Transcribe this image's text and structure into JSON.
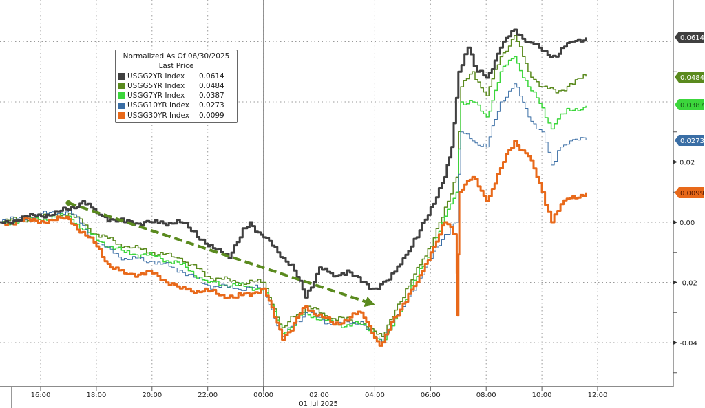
{
  "chart_data": {
    "type": "line",
    "title": "",
    "xlabel": "01 Jul 2025",
    "ylabel": "",
    "ylim": [
      -0.05,
      0.07
    ],
    "xlim": [
      "2025-06-30T14:32",
      "2025-07-01T14:45"
    ],
    "grid": true,
    "legend_placement": "top-left",
    "x_ticks": [
      "16:00",
      "18:00",
      "20:00",
      "22:00",
      "00:00",
      "02:00",
      "04:00",
      "06:00",
      "08:00",
      "10:00",
      "12:00"
    ],
    "x_tick_times": [
      "2025-06-30T16:00",
      "2025-06-30T18:00",
      "2025-06-30T20:00",
      "2025-06-30T22:00",
      "2025-07-01T00:00",
      "2025-07-01T02:00",
      "2025-07-01T04:00",
      "2025-07-01T06:00",
      "2025-07-01T08:00",
      "2025-07-01T10:00",
      "2025-07-01T12:00"
    ],
    "y_ticks": [
      "0.02",
      "0.00",
      "-0.02",
      "-0.04"
    ],
    "y_tick_values": [
      0.02,
      0.0,
      -0.02,
      -0.04
    ],
    "y_grid_values": [
      0.06,
      0.04,
      0.02,
      0.0,
      -0.02,
      -0.04
    ],
    "legend": {
      "title": "Normalized As Of 06/30/2025",
      "subtitle": "Last Price"
    },
    "series": [
      {
        "name": "USGG2YR Index",
        "last": "0.0614",
        "color": "#404040",
        "width": 3,
        "points": [
          [
            "2025-06-30T14:32",
            0.0
          ],
          [
            "2025-06-30T17:00",
            0.004
          ],
          [
            "2025-06-30T17:30",
            0.007
          ],
          [
            "2025-06-30T18:00",
            0.003
          ],
          [
            "2025-06-30T18:30",
            0.001
          ],
          [
            "2025-06-30T19:00",
            0.0
          ],
          [
            "2025-06-30T20:00",
            0.0
          ],
          [
            "2025-06-30T21:00",
            0.0
          ],
          [
            "2025-06-30T21:30",
            -0.003
          ],
          [
            "2025-06-30T22:00",
            -0.008
          ],
          [
            "2025-06-30T22:45",
            -0.012
          ],
          [
            "2025-06-30T23:15",
            -0.002
          ],
          [
            "2025-06-30T23:30",
            0.0
          ],
          [
            "2025-07-01T00:00",
            -0.005
          ],
          [
            "2025-07-01T00:30",
            -0.01
          ],
          [
            "2025-07-01T01:00",
            -0.014
          ],
          [
            "2025-07-01T01:30",
            -0.025
          ],
          [
            "2025-07-01T02:00",
            -0.015
          ],
          [
            "2025-07-01T02:30",
            -0.018
          ],
          [
            "2025-07-01T03:00",
            -0.016
          ],
          [
            "2025-07-01T03:30",
            -0.02
          ],
          [
            "2025-07-01T04:00",
            -0.022
          ],
          [
            "2025-07-01T04:30",
            -0.019
          ],
          [
            "2025-07-01T05:00",
            -0.012
          ],
          [
            "2025-07-01T05:30",
            -0.005
          ],
          [
            "2025-07-01T06:00",
            0.005
          ],
          [
            "2025-07-01T06:30",
            0.015
          ],
          [
            "2025-07-01T06:45",
            0.025
          ],
          [
            "2025-07-01T07:00",
            0.05
          ],
          [
            "2025-07-01T07:20",
            0.058
          ],
          [
            "2025-07-01T07:40",
            0.05
          ],
          [
            "2025-07-01T08:00",
            0.048
          ],
          [
            "2025-07-01T08:30",
            0.058
          ],
          [
            "2025-07-01T09:00",
            0.064
          ],
          [
            "2025-07-01T09:30",
            0.06
          ],
          [
            "2025-07-01T10:00",
            0.057
          ],
          [
            "2025-07-01T10:30",
            0.055
          ],
          [
            "2025-07-01T11:00",
            0.06
          ],
          [
            "2025-07-01T11:35",
            0.0614
          ]
        ]
      },
      {
        "name": "USGG5YR Index",
        "last": "0.0484",
        "color": "#5a8a1e",
        "width": 1.5,
        "points": [
          [
            "2025-06-30T14:32",
            0.0
          ],
          [
            "2025-06-30T17:00",
            0.003
          ],
          [
            "2025-06-30T18:00",
            -0.004
          ],
          [
            "2025-06-30T19:00",
            -0.008
          ],
          [
            "2025-06-30T20:00",
            -0.01
          ],
          [
            "2025-06-30T21:00",
            -0.012
          ],
          [
            "2025-06-30T22:00",
            -0.018
          ],
          [
            "2025-06-30T23:00",
            -0.02
          ],
          [
            "2025-07-01T00:00",
            -0.02
          ],
          [
            "2025-07-01T00:40",
            -0.035
          ],
          [
            "2025-07-01T01:30",
            -0.028
          ],
          [
            "2025-07-01T02:30",
            -0.032
          ],
          [
            "2025-07-01T03:30",
            -0.033
          ],
          [
            "2025-07-01T04:15",
            -0.038
          ],
          [
            "2025-07-01T05:00",
            -0.025
          ],
          [
            "2025-07-01T05:30",
            -0.015
          ],
          [
            "2025-07-01T06:00",
            -0.008
          ],
          [
            "2025-07-01T06:30",
            0.005
          ],
          [
            "2025-07-01T06:55",
            0.015
          ],
          [
            "2025-07-01T07:05",
            0.045
          ],
          [
            "2025-07-01T07:30",
            0.05
          ],
          [
            "2025-07-01T08:00",
            0.042
          ],
          [
            "2025-07-01T08:30",
            0.055
          ],
          [
            "2025-07-01T09:00",
            0.062
          ],
          [
            "2025-07-01T09:30",
            0.05
          ],
          [
            "2025-07-01T10:00",
            0.045
          ],
          [
            "2025-07-01T10:30",
            0.043
          ],
          [
            "2025-07-01T11:00",
            0.046
          ],
          [
            "2025-07-01T11:35",
            0.0484
          ]
        ]
      },
      {
        "name": "USGG7YR Index",
        "last": "0.0387",
        "color": "#3cd63c",
        "width": 1.5,
        "points": [
          [
            "2025-06-30T14:32",
            0.0
          ],
          [
            "2025-06-30T17:00",
            0.002
          ],
          [
            "2025-06-30T18:00",
            -0.006
          ],
          [
            "2025-06-30T19:00",
            -0.01
          ],
          [
            "2025-06-30T20:00",
            -0.011
          ],
          [
            "2025-06-30T21:00",
            -0.014
          ],
          [
            "2025-06-30T22:00",
            -0.02
          ],
          [
            "2025-06-30T23:00",
            -0.021
          ],
          [
            "2025-07-01T00:00",
            -0.022
          ],
          [
            "2025-07-01T00:40",
            -0.037
          ],
          [
            "2025-07-01T01:30",
            -0.03
          ],
          [
            "2025-07-01T02:30",
            -0.034
          ],
          [
            "2025-07-01T03:30",
            -0.034
          ],
          [
            "2025-07-01T04:15",
            -0.04
          ],
          [
            "2025-07-01T05:00",
            -0.027
          ],
          [
            "2025-07-01T05:30",
            -0.018
          ],
          [
            "2025-07-01T06:00",
            -0.01
          ],
          [
            "2025-07-01T06:30",
            0.002
          ],
          [
            "2025-07-01T06:55",
            0.01
          ],
          [
            "2025-07-01T07:05",
            0.04
          ],
          [
            "2025-07-01T07:30",
            0.04
          ],
          [
            "2025-07-01T08:00",
            0.035
          ],
          [
            "2025-07-01T08:30",
            0.05
          ],
          [
            "2025-07-01T09:00",
            0.055
          ],
          [
            "2025-07-01T09:30",
            0.045
          ],
          [
            "2025-07-01T10:00",
            0.038
          ],
          [
            "2025-07-01T10:20",
            0.031
          ],
          [
            "2025-07-01T10:40",
            0.036
          ],
          [
            "2025-07-01T11:00",
            0.037
          ],
          [
            "2025-07-01T11:35",
            0.0387
          ]
        ]
      },
      {
        "name": "USGG10YR Index",
        "last": "0.0273",
        "color": "#3a6ea5",
        "width": 1,
        "points": [
          [
            "2025-06-30T14:32",
            0.0
          ],
          [
            "2025-06-30T17:00",
            0.004
          ],
          [
            "2025-06-30T18:00",
            -0.007
          ],
          [
            "2025-06-30T19:00",
            -0.012
          ],
          [
            "2025-06-30T20:00",
            -0.013
          ],
          [
            "2025-06-30T21:00",
            -0.016
          ],
          [
            "2025-06-30T22:00",
            -0.021
          ],
          [
            "2025-06-30T23:00",
            -0.022
          ],
          [
            "2025-07-01T00:00",
            -0.022
          ],
          [
            "2025-07-01T00:40",
            -0.038
          ],
          [
            "2025-07-01T01:30",
            -0.03
          ],
          [
            "2025-07-01T02:30",
            -0.034
          ],
          [
            "2025-07-01T03:30",
            -0.033
          ],
          [
            "2025-07-01T04:15",
            -0.04
          ],
          [
            "2025-07-01T05:00",
            -0.028
          ],
          [
            "2025-07-01T05:30",
            -0.02
          ],
          [
            "2025-07-01T06:00",
            -0.012
          ],
          [
            "2025-07-01T06:30",
            -0.004
          ],
          [
            "2025-07-01T06:55",
            0.0
          ],
          [
            "2025-07-01T07:05",
            0.03
          ],
          [
            "2025-07-01T07:30",
            0.027
          ],
          [
            "2025-07-01T08:00",
            0.025
          ],
          [
            "2025-07-01T08:30",
            0.04
          ],
          [
            "2025-07-01T09:00",
            0.046
          ],
          [
            "2025-07-01T09:30",
            0.035
          ],
          [
            "2025-07-01T10:00",
            0.03
          ],
          [
            "2025-07-01T10:20",
            0.019
          ],
          [
            "2025-07-01T10:40",
            0.025
          ],
          [
            "2025-07-01T11:00",
            0.027
          ],
          [
            "2025-07-01T11:35",
            0.0273
          ]
        ]
      },
      {
        "name": "USGG30YR Index",
        "last": "0.0099",
        "color": "#e8691a",
        "width": 3,
        "points": [
          [
            "2025-06-30T14:32",
            0.0
          ],
          [
            "2025-06-30T17:00",
            0.001
          ],
          [
            "2025-06-30T18:00",
            -0.008
          ],
          [
            "2025-06-30T18:30",
            -0.015
          ],
          [
            "2025-06-30T19:00",
            -0.017
          ],
          [
            "2025-06-30T20:00",
            -0.017
          ],
          [
            "2025-06-30T21:00",
            -0.022
          ],
          [
            "2025-06-30T22:00",
            -0.023
          ],
          [
            "2025-06-30T23:00",
            -0.025
          ],
          [
            "2025-07-01T00:00",
            -0.022
          ],
          [
            "2025-07-01T00:40",
            -0.039
          ],
          [
            "2025-07-01T01:30",
            -0.028
          ],
          [
            "2025-07-01T02:30",
            -0.034
          ],
          [
            "2025-07-01T03:30",
            -0.03
          ],
          [
            "2025-07-01T04:10",
            -0.041
          ],
          [
            "2025-07-01T05:00",
            -0.027
          ],
          [
            "2025-07-01T05:30",
            -0.02
          ],
          [
            "2025-07-01T06:00",
            -0.01
          ],
          [
            "2025-07-01T06:30",
            0.0
          ],
          [
            "2025-07-01T06:55",
            -0.004
          ],
          [
            "2025-07-01T06:58",
            -0.031
          ],
          [
            "2025-07-01T07:02",
            0.01
          ],
          [
            "2025-07-01T07:30",
            0.015
          ],
          [
            "2025-07-01T08:00",
            0.007
          ],
          [
            "2025-07-01T08:30",
            0.018
          ],
          [
            "2025-07-01T09:00",
            0.027
          ],
          [
            "2025-07-01T09:30",
            0.022
          ],
          [
            "2025-07-01T10:00",
            0.01
          ],
          [
            "2025-07-01T10:20",
            0.0
          ],
          [
            "2025-07-01T10:40",
            0.006
          ],
          [
            "2025-07-01T11:00",
            0.008
          ],
          [
            "2025-07-01T11:35",
            0.0099
          ]
        ]
      }
    ],
    "annotations": [
      {
        "type": "dashed-arrow",
        "color": "#5a8a1e",
        "from": [
          "2025-06-30T17:00",
          0.0064
        ],
        "to": [
          "2025-07-01T04:00",
          -0.0274
        ]
      }
    ]
  }
}
